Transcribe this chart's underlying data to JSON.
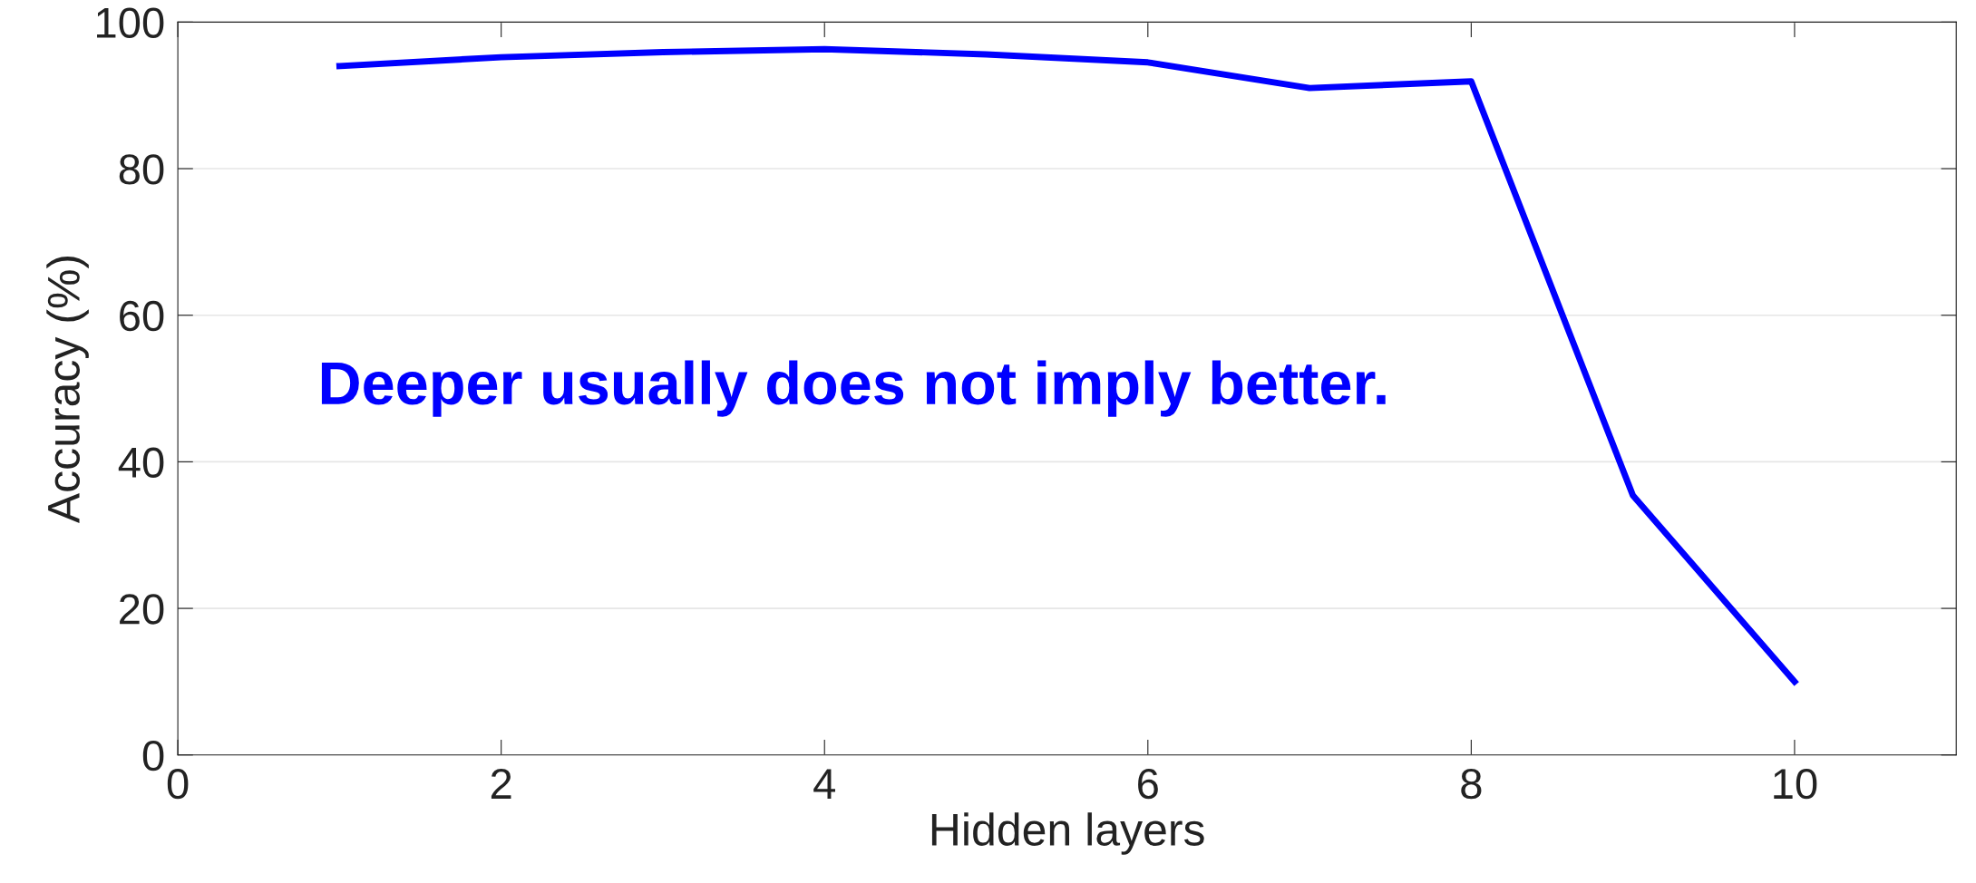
{
  "chart_data": {
    "type": "line",
    "xlabel": "Hidden layers",
    "ylabel": "Accuracy (%)",
    "x": [
      1,
      2,
      3,
      4,
      5,
      6,
      7,
      8,
      9,
      10
    ],
    "series": [
      {
        "color": "#0000ff",
        "values": [
          94.0,
          95.2,
          95.9,
          96.3,
          95.6,
          94.5,
          91.0,
          91.9,
          35.4,
          10.0
        ]
      }
    ],
    "xlim": [
      0,
      11
    ],
    "ylim": [
      0,
      100
    ],
    "xticks": [
      0,
      2,
      4,
      6,
      8,
      10
    ],
    "yticks": [
      0,
      20,
      40,
      60,
      80,
      100
    ],
    "grid": "y",
    "marker": "none",
    "line_style": "solid",
    "annotations": [
      "Deeper usually does not imply better."
    ]
  }
}
